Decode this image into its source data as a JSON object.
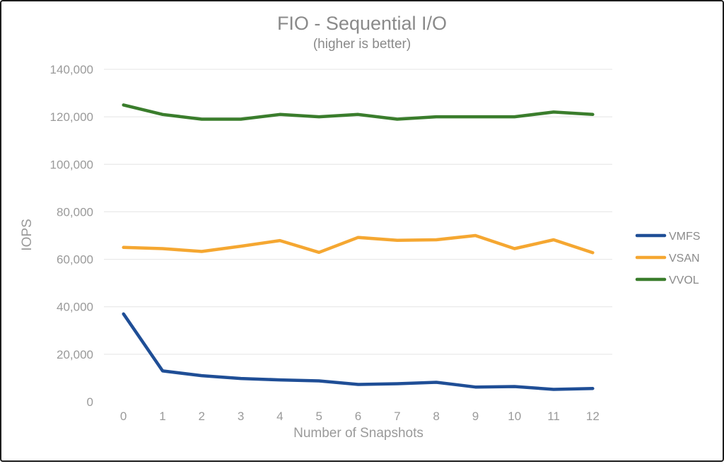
{
  "chart_data": {
    "type": "line",
    "title": "FIO - Sequential I/O",
    "subtitle": "(higher is better)",
    "xlabel": "Number of Snapshots",
    "ylabel": "IOPS",
    "x": [
      0,
      1,
      2,
      3,
      4,
      5,
      6,
      7,
      8,
      9,
      10,
      11,
      12
    ],
    "x_tick_labels": [
      "0",
      "1",
      "2",
      "3",
      "4",
      "5",
      "6",
      "7",
      "8",
      "9",
      "10",
      "11",
      "12"
    ],
    "y_ticks": [
      0,
      20000,
      40000,
      60000,
      80000,
      100000,
      120000,
      140000
    ],
    "y_tick_labels": [
      "0",
      "20,000",
      "40,000",
      "60,000",
      "80,000",
      "100,000",
      "120,000",
      "140,000"
    ],
    "ylim": [
      0,
      140000
    ],
    "grid": true,
    "legend_position": "right",
    "series": [
      {
        "name": "VMFS",
        "color": "#1f4e96",
        "values": [
          37000,
          13000,
          11000,
          9800,
          9200,
          8800,
          7300,
          7600,
          8200,
          6200,
          6400,
          5200,
          5600
        ]
      },
      {
        "name": "VSAN",
        "color": "#f5a731",
        "values": [
          65000,
          64500,
          63300,
          65500,
          67900,
          62900,
          69200,
          68000,
          68200,
          70000,
          64500,
          68200,
          62800
        ]
      },
      {
        "name": "VVOL",
        "color": "#3a7d2c",
        "values": [
          125000,
          121000,
          119000,
          119000,
          121000,
          120000,
          121000,
          119000,
          120000,
          120000,
          120000,
          122000,
          121000
        ]
      }
    ]
  }
}
